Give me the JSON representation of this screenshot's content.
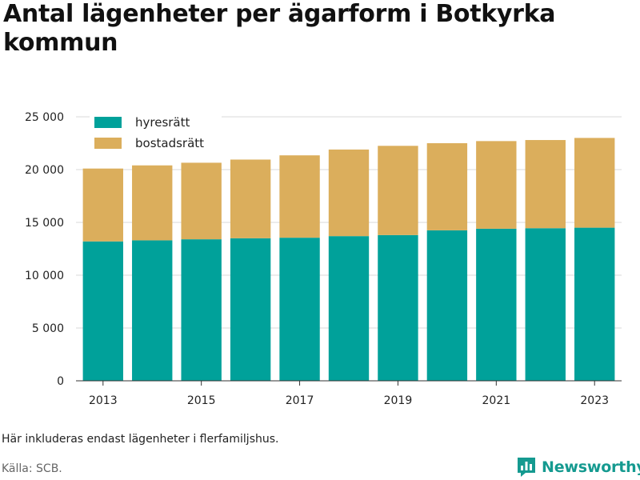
{
  "title": "Antal lägenheter per ägarform i Botkyrka kommun",
  "note": "Här inkluderas endast lägenheter i flerfamiljshus.",
  "source": "Källa: SCB.",
  "brand": {
    "name": "Newsworthy",
    "color": "#159a90",
    "icon": "newsworthy-logo-icon"
  },
  "chart_data": {
    "type": "bar",
    "stacked": true,
    "title": "",
    "xlabel": "",
    "ylabel": "",
    "categories": [
      "2013",
      "2014",
      "2015",
      "2016",
      "2017",
      "2018",
      "2019",
      "2020",
      "2021",
      "2022",
      "2023"
    ],
    "x_tick_labels": [
      "2013",
      "2015",
      "2017",
      "2019",
      "2021",
      "2023"
    ],
    "y_tick_labels": [
      "0",
      "5 000",
      "10 000",
      "15 000",
      "20 000",
      "25 000"
    ],
    "y_ticks": [
      0,
      5000,
      10000,
      15000,
      20000,
      25000
    ],
    "ylim": [
      0,
      25000
    ],
    "grid": true,
    "legend_position": "top-left",
    "series": [
      {
        "name": "hyresrätt",
        "color": "#00a19a",
        "values": [
          13200,
          13300,
          13400,
          13500,
          13550,
          13700,
          13800,
          14250,
          14400,
          14450,
          14500
        ]
      },
      {
        "name": "bostadsrätt",
        "color": "#dbae5c",
        "values": [
          6900,
          7100,
          7250,
          7450,
          7800,
          8200,
          8450,
          8250,
          8300,
          8350,
          8500
        ]
      }
    ]
  }
}
